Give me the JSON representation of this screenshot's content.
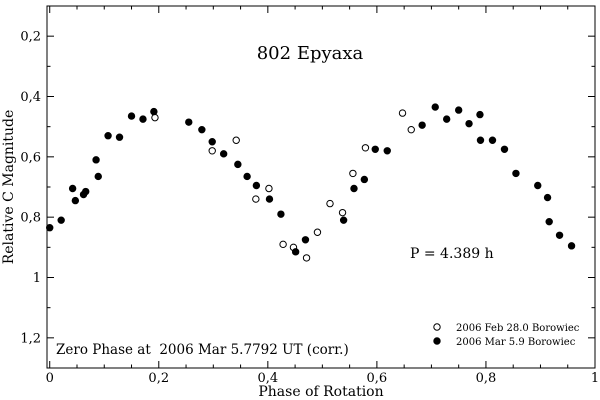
{
  "chart_data": {
    "type": "scatter",
    "title": "802 Epyaxa",
    "xlabel": "Phase of Rotation",
    "ylabel": "Relative C Magnitude",
    "xlim": [
      -0.005,
      1.0
    ],
    "ylim": [
      1.3,
      0.1
    ],
    "y_inverted": true,
    "grid": false,
    "x_ticks": [
      0,
      0.2,
      0.4,
      0.6,
      0.8,
      1
    ],
    "x_tick_labels": [
      "0",
      "0,2",
      "0,4",
      "0,6",
      "0,8",
      "1"
    ],
    "x_minor_step": 0.05,
    "y_ticks": [
      0.2,
      0.4,
      0.6,
      0.8,
      1.0,
      1.2
    ],
    "y_tick_labels": [
      "0,2",
      "0,4",
      "0,6",
      "0,8",
      "1",
      "1,2"
    ],
    "y_minor_step": 0.1,
    "legend_placement": "bottom-right",
    "period_label": "P = 4.389 h",
    "annotation": "Zero Phase at  2006 Mar 5.7792 UT (corr.)",
    "series": [
      {
        "name": "2006 Feb 28.0 Borowiec",
        "marker": "open-circle",
        "color": "#000000",
        "x": [
          0.193,
          0.298,
          0.342,
          0.378,
          0.402,
          0.428,
          0.447,
          0.471,
          0.491,
          0.514,
          0.537,
          0.556,
          0.579,
          0.647,
          0.663
        ],
        "y": [
          0.47,
          0.58,
          0.545,
          0.74,
          0.705,
          0.89,
          0.9,
          0.935,
          0.85,
          0.755,
          0.785,
          0.655,
          0.57,
          0.455,
          0.51
        ]
      },
      {
        "name": "2006 Mar 5.9 Borowiec",
        "marker": "filled-circle",
        "color": "#000000",
        "x": [
          0.0,
          0.021,
          0.042,
          0.047,
          0.062,
          0.066,
          0.085,
          0.089,
          0.107,
          0.128,
          0.15,
          0.171,
          0.191,
          0.255,
          0.279,
          0.298,
          0.319,
          0.345,
          0.362,
          0.379,
          0.403,
          0.424,
          0.451,
          0.469,
          0.539,
          0.558,
          0.577,
          0.597,
          0.619,
          0.683,
          0.707,
          0.728,
          0.75,
          0.769,
          0.789,
          0.79,
          0.812,
          0.834,
          0.855,
          0.895,
          0.913,
          0.916,
          0.935,
          0.957
        ],
        "y": [
          0.835,
          0.81,
          0.705,
          0.745,
          0.725,
          0.715,
          0.61,
          0.665,
          0.53,
          0.535,
          0.465,
          0.475,
          0.45,
          0.485,
          0.51,
          0.55,
          0.59,
          0.625,
          0.665,
          0.695,
          0.74,
          0.79,
          0.915,
          0.875,
          0.81,
          0.705,
          0.675,
          0.575,
          0.58,
          0.495,
          0.435,
          0.475,
          0.445,
          0.49,
          0.46,
          0.545,
          0.545,
          0.575,
          0.655,
          0.695,
          0.735,
          0.815,
          0.86,
          0.895
        ]
      }
    ]
  }
}
